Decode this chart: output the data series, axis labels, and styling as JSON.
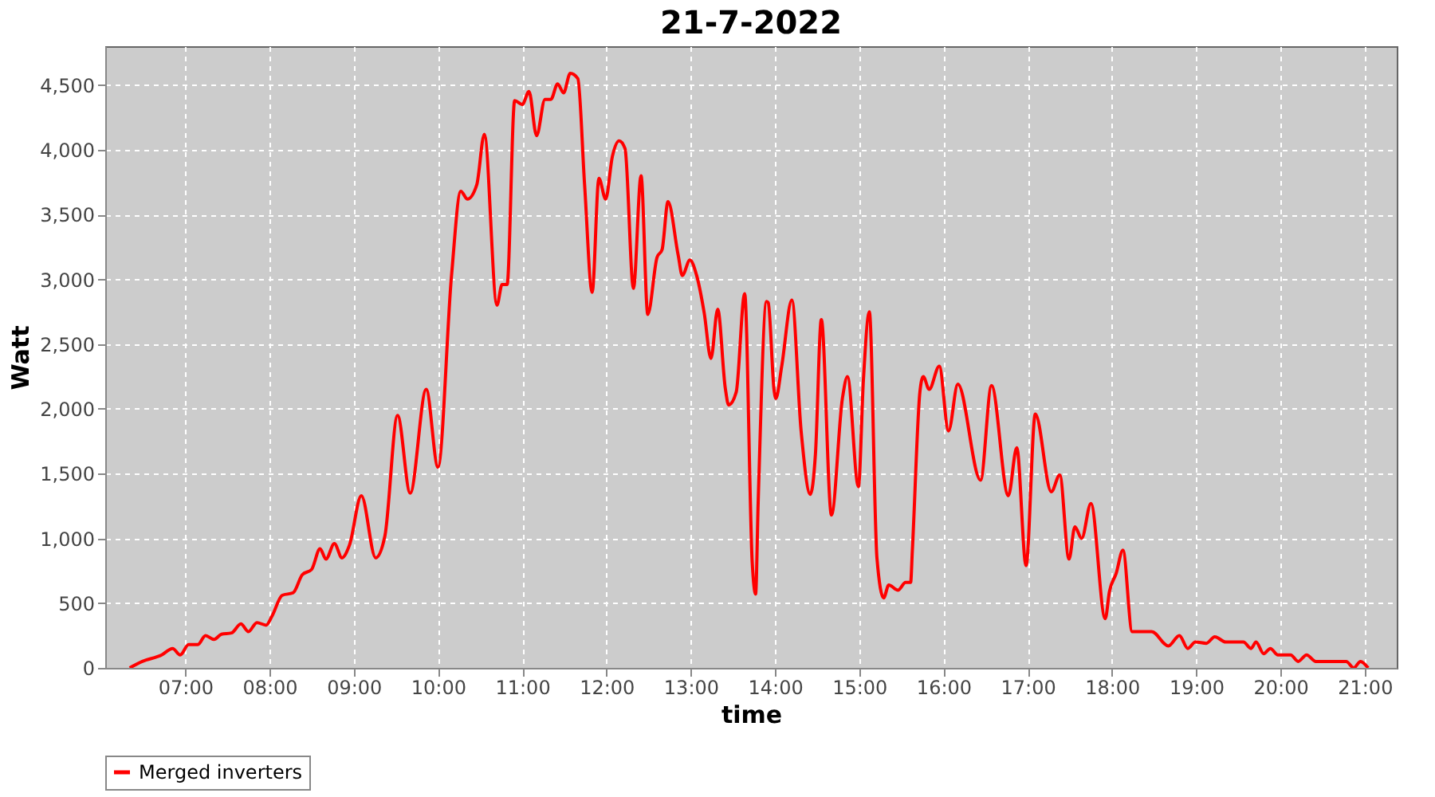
{
  "chart_data": {
    "type": "line",
    "title": "21-7-2022",
    "xlabel": "time",
    "ylabel": "Watt",
    "xlim": [
      6.05,
      21.38
    ],
    "xticks": [
      {
        "value": 7,
        "label": "07:00"
      },
      {
        "value": 8,
        "label": "08:00"
      },
      {
        "value": 9,
        "label": "09:00"
      },
      {
        "value": 10,
        "label": "10:00"
      },
      {
        "value": 11,
        "label": "11:00"
      },
      {
        "value": 12,
        "label": "12:00"
      },
      {
        "value": 13,
        "label": "13:00"
      },
      {
        "value": 14,
        "label": "14:00"
      },
      {
        "value": 15,
        "label": "15:00"
      },
      {
        "value": 16,
        "label": "16:00"
      },
      {
        "value": 17,
        "label": "17:00"
      },
      {
        "value": 18,
        "label": "18:00"
      },
      {
        "value": 19,
        "label": "19:00"
      },
      {
        "value": 20,
        "label": "20:00"
      },
      {
        "value": 21,
        "label": "21:00"
      }
    ],
    "ylim": [
      0,
      4800
    ],
    "yticks": [
      0,
      500,
      {
        "value": 1000,
        "label": "1,000"
      },
      {
        "value": 1500,
        "label": "1,500"
      },
      {
        "value": 2000,
        "label": "2,000"
      },
      {
        "value": 2500,
        "label": "2,500"
      },
      {
        "value": 3000,
        "label": "3,000"
      },
      {
        "value": 3500,
        "label": "3,500"
      },
      {
        "value": 4000,
        "label": "4,000"
      },
      {
        "value": 4500,
        "label": "4,500"
      }
    ],
    "grid": true,
    "legend": "bottom",
    "line_style": "solid",
    "series": [
      {
        "name": "Merged inverters",
        "color": "#ff0000",
        "x": [
          6.34,
          6.49,
          6.72,
          6.85,
          6.94,
          7.04,
          7.15,
          7.24,
          7.34,
          7.43,
          7.55,
          7.66,
          7.75,
          7.85,
          7.96,
          8.03,
          8.15,
          8.28,
          8.39,
          8.5,
          8.6,
          8.67,
          8.77,
          8.86,
          8.95,
          9.09,
          9.26,
          9.37,
          9.52,
          9.67,
          9.86,
          10.0,
          10.16,
          10.27,
          10.35,
          10.46,
          10.55,
          10.7,
          10.76,
          10.82,
          10.91,
          11.0,
          11.08,
          11.17,
          11.27,
          11.34,
          11.42,
          11.49,
          11.57,
          11.66,
          11.74,
          11.83,
          11.91,
          11.99,
          12.07,
          12.15,
          12.22,
          12.32,
          12.41,
          12.49,
          12.6,
          12.66,
          12.73,
          12.85,
          12.9,
          12.99,
          13.07,
          13.16,
          13.24,
          13.32,
          13.41,
          13.45,
          13.54,
          13.64,
          13.73,
          13.77,
          13.8,
          13.9,
          13.92,
          13.99,
          14.01,
          14.08,
          14.2,
          14.31,
          14.42,
          14.48,
          14.55,
          14.67,
          14.8,
          14.86,
          14.99,
          15.05,
          15.12,
          15.21,
          15.29,
          15.35,
          15.46,
          15.55,
          15.61,
          15.63,
          15.72,
          15.76,
          15.83,
          15.95,
          16.06,
          16.17,
          16.44,
          16.57,
          16.77,
          16.87,
          16.98,
          17.09,
          17.28,
          17.38,
          17.49,
          17.56,
          17.64,
          17.75,
          17.92,
          17.97,
          18.05,
          18.13,
          18.24,
          18.47,
          18.67,
          18.8,
          18.9,
          18.99,
          19.12,
          19.22,
          19.35,
          19.56,
          19.65,
          19.71,
          19.8,
          19.88,
          19.97,
          20.12,
          20.21,
          20.31,
          20.42,
          20.78,
          20.87,
          20.95,
          21.04
        ],
        "values": [
          0,
          50,
          100,
          150,
          100,
          180,
          180,
          250,
          220,
          260,
          270,
          340,
          280,
          350,
          330,
          400,
          560,
          580,
          720,
          760,
          920,
          840,
          960,
          850,
          950,
          1330,
          850,
          1020,
          1950,
          1350,
          2150,
          1550,
          3025,
          3680,
          3620,
          3730,
          4120,
          2800,
          2960,
          2960,
          4380,
          4350,
          4450,
          4110,
          4390,
          4390,
          4510,
          4440,
          4590,
          4550,
          3730,
          2900,
          3780,
          3620,
          3950,
          4070,
          4010,
          2930,
          3800,
          2730,
          3170,
          3230,
          3600,
          3190,
          3030,
          3150,
          3030,
          2740,
          2390,
          2770,
          2160,
          2030,
          2130,
          2890,
          810,
          570,
          1270,
          2830,
          2820,
          2140,
          2080,
          2330,
          2840,
          1830,
          1340,
          1650,
          2690,
          1180,
          2080,
          2250,
          1400,
          2230,
          2750,
          850,
          540,
          640,
          600,
          660,
          660,
          900,
          2130,
          2250,
          2150,
          2330,
          1830,
          2190,
          1450,
          2180,
          1330,
          1700,
          790,
          1960,
          1360,
          1490,
          840,
          1090,
          1000,
          1270,
          380,
          590,
          730,
          910,
          280,
          280,
          170,
          250,
          150,
          200,
          190,
          240,
          200,
          200,
          150,
          200,
          110,
          150,
          100,
          100,
          50,
          100,
          50,
          50,
          0,
          50,
          0
        ]
      }
    ]
  }
}
